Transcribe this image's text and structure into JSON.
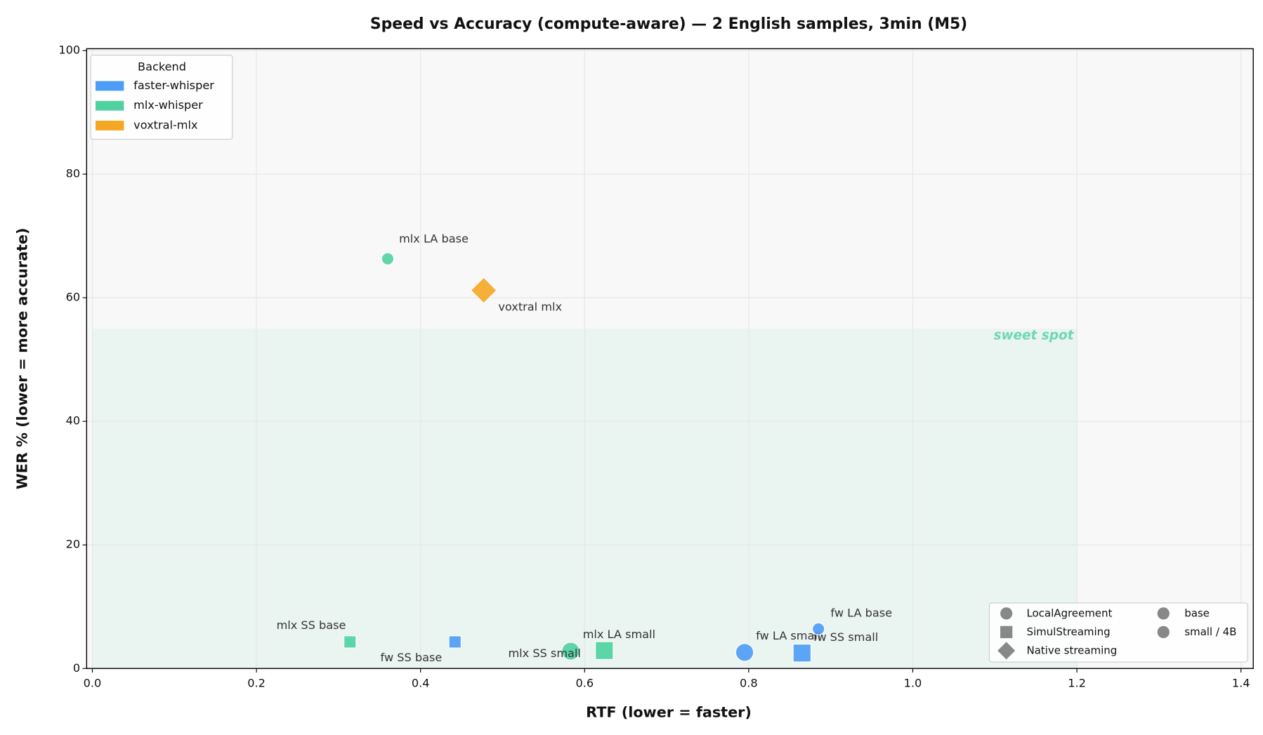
{
  "chart_data": {
    "type": "scatter",
    "title": "Speed vs Accuracy (compute-aware) — 2 English samples, 3min (M5)",
    "x_label": "RTF (lower = faster)",
    "y_label": "WER % (lower = more accurate)",
    "xlim": [
      -0.007,
      1.415
    ],
    "ylim": [
      0,
      100.3
    ],
    "xticks": [
      {
        "value": 0,
        "label": "0.0"
      },
      {
        "value": 0.2,
        "label": "0.2"
      },
      {
        "value": 0.4,
        "label": "0.4"
      },
      {
        "value": 0.6,
        "label": "0.6"
      },
      {
        "value": 0.8,
        "label": "0.8"
      },
      {
        "value": 1,
        "label": "1.0"
      },
      {
        "value": 1.2,
        "label": "1.2"
      },
      {
        "value": 1.4,
        "label": "1.4"
      }
    ],
    "yticks": [
      0,
      20,
      40,
      60,
      80,
      100
    ],
    "grid": true,
    "legend": {
      "title": "Backend",
      "corner": "upper left"
    },
    "region": {
      "text": "sweet spot",
      "xlim": [
        0,
        1.2
      ],
      "ylim": [
        0,
        55
      ],
      "color": "#4fd1a0"
    },
    "series": [
      {
        "name": "faster-whisper",
        "color": "#4d9cf6",
        "labels": [
          "fw SS base",
          "fw LA small",
          "fw SS small",
          "fw LA base"
        ],
        "x": [
          0.442,
          0.795,
          0.865,
          0.885
        ],
        "y": [
          4.3,
          2.6,
          2.5,
          6.4
        ],
        "markers": [
          "square",
          "circle",
          "square",
          "circle"
        ],
        "sizes": [
          "small",
          "large",
          "large",
          "small"
        ]
      },
      {
        "name": "mlx-whisper",
        "color": "#4fd1a0",
        "labels": [
          "mlx LA base",
          "mlx SS base",
          "mlx LA small",
          "mlx SS small"
        ],
        "x": [
          0.36,
          0.314,
          0.583,
          0.624
        ],
        "y": [
          66.3,
          4.3,
          2.8,
          2.9
        ],
        "markers": [
          "circle",
          "square",
          "circle",
          "square"
        ],
        "sizes": [
          "small",
          "small",
          "large",
          "large"
        ]
      },
      {
        "name": "voxtral-mlx",
        "color": "#f5a623",
        "labels": [
          "voxtral mlx"
        ],
        "x": [
          0.477
        ],
        "y": [
          61.2
        ],
        "markers": [
          "diamond"
        ],
        "sizes": [
          "large"
        ]
      }
    ],
    "shape_legend": {
      "corner": "lower right",
      "shapes": [
        {
          "label": "LocalAgreement",
          "marker": "circle"
        },
        {
          "label": "SimulStreaming",
          "marker": "square"
        },
        {
          "label": "Native streaming",
          "marker": "diamond"
        }
      ],
      "sizes": [
        {
          "label": "base",
          "size": "small"
        },
        {
          "label": "small / 4B",
          "size": "large"
        }
      ]
    }
  }
}
